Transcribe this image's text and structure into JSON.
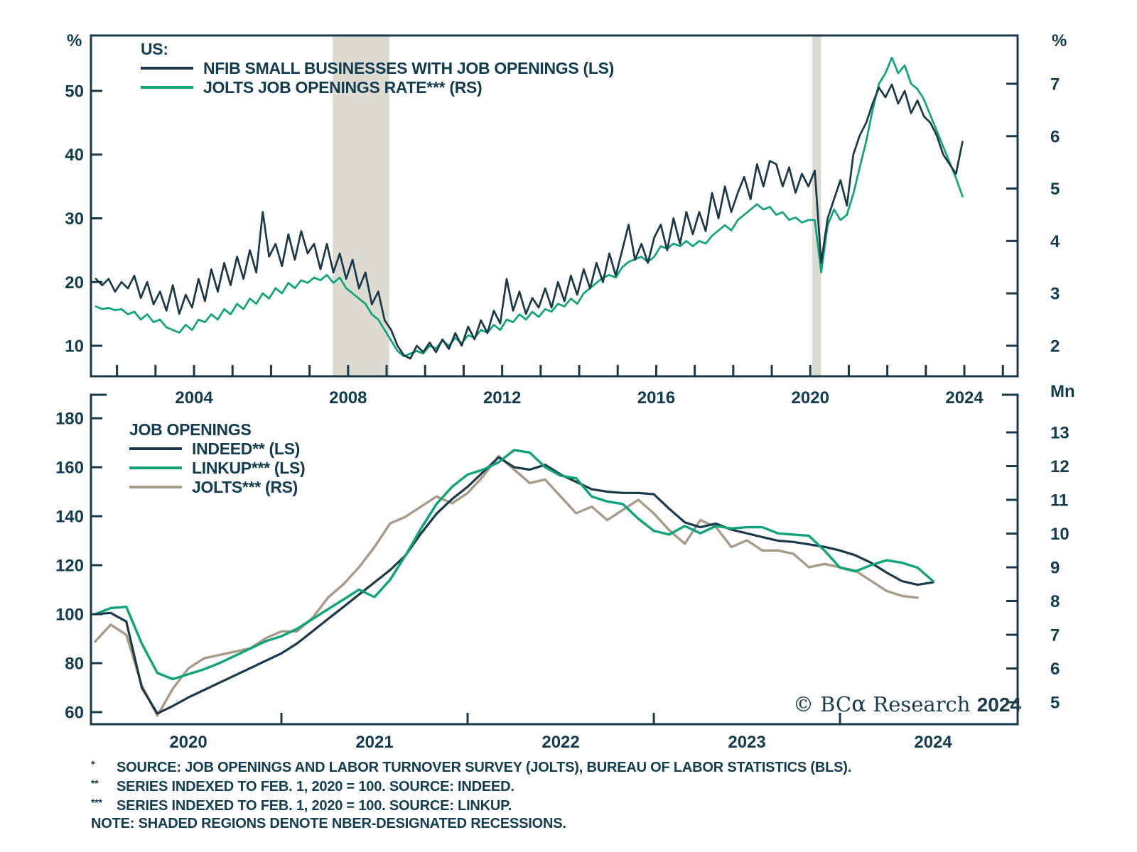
{
  "colors": {
    "navy": "#19394a",
    "green": "#0ca478",
    "tan": "#a79b88",
    "recession_band": "#dedcd2",
    "text": "#123c4f"
  },
  "copyright": {
    "prefix": "© BC",
    "alpha": "α",
    "name": " Research ",
    "year": "2024"
  },
  "footnotes": [
    {
      "marker": "*",
      "text": "SOURCE: JOB OPENINGS AND LABOR TURNOVER SURVEY (JOLTS), BUREAU OF LABOR STATISTICS (BLS)."
    },
    {
      "marker": "**",
      "text": "SERIES INDEXED TO FEB. 1, 2020 = 100. SOURCE: INDEED."
    },
    {
      "marker": "***",
      "text": "SERIES INDEXED TO FEB. 1, 2020 = 100. SOURCE: LINKUP."
    },
    {
      "marker": "",
      "text": "NOTE: SHADED REGIONS DENOTE NBER-DESIGNATED RECESSIONS."
    }
  ],
  "chart_data": [
    {
      "type": "line",
      "panel": "top",
      "legend_title": "US:",
      "x_axis": {
        "labels": [
          2004,
          2008,
          2012,
          2016,
          2020,
          2024
        ],
        "range": [
          2001.324,
          2025.383
        ],
        "grid": false
      },
      "left_axis": {
        "unit": "%",
        "ticks": [
          50,
          40,
          30,
          20,
          10
        ],
        "range": [
          5.21,
          58.69
        ]
      },
      "right_axis": {
        "unit": "%",
        "ticks": [
          7,
          6,
          5,
          4,
          3,
          2
        ],
        "range": [
          1.417,
          7.921
        ]
      },
      "recession_bands": [
        [
          2007.6,
          2009.07
        ],
        [
          2020.05,
          2020.28
        ]
      ],
      "series": [
        {
          "name": "NFIB SMALL BUSINESSES WITH JOB OPENINGS (LS)",
          "axis": "left",
          "color": "#19394a",
          "width": 2.7,
          "x_start": 2001.45,
          "x_step": 0.16667,
          "values": [
            20.5,
            19.5,
            20.5,
            18.5,
            20,
            19,
            21,
            17.5,
            20,
            16.5,
            18.5,
            15.5,
            19.5,
            15,
            18,
            16,
            20.5,
            17,
            22,
            18.5,
            23,
            19.5,
            24,
            20.5,
            25,
            21.5,
            31,
            24,
            26,
            22.5,
            27.5,
            23.5,
            28,
            24.5,
            26,
            22,
            26,
            21.5,
            24.5,
            20.5,
            23.5,
            19,
            21.5,
            16.5,
            18.5,
            14,
            12.5,
            10,
            8.5,
            8,
            10,
            9,
            10.5,
            9,
            11,
            9.5,
            12,
            10,
            13,
            11,
            14,
            12,
            15.5,
            13.5,
            20.5,
            15.5,
            18.5,
            15,
            17.5,
            16,
            19,
            16,
            20,
            17,
            21,
            18,
            22,
            19,
            23,
            20,
            24.5,
            21,
            25,
            29,
            23.5,
            26,
            23,
            27,
            29,
            25,
            30,
            26,
            31,
            27.5,
            31,
            28,
            34,
            30,
            35,
            31,
            34,
            36.5,
            33,
            38.5,
            35,
            39,
            38.5,
            35,
            38,
            34,
            37,
            35,
            37.5,
            23,
            30,
            33,
            36,
            32,
            40,
            43,
            45,
            48,
            50.5,
            49,
            51,
            48,
            50,
            46.5,
            48.5,
            46,
            45,
            43,
            40,
            38.5,
            37,
            42
          ]
        },
        {
          "name": "JOLTS JOB OPENINGS RATE*** (RS)",
          "axis": "right",
          "color": "#0ca478",
          "width": 2.7,
          "x_start": 2001.45,
          "x_step": 0.16667,
          "values": [
            2.75,
            2.7,
            2.72,
            2.68,
            2.7,
            2.6,
            2.65,
            2.5,
            2.6,
            2.45,
            2.5,
            2.35,
            2.3,
            2.25,
            2.4,
            2.3,
            2.5,
            2.45,
            2.6,
            2.5,
            2.7,
            2.6,
            2.8,
            2.7,
            2.9,
            2.8,
            3.0,
            2.9,
            3.1,
            3.0,
            3.2,
            3.1,
            3.25,
            3.2,
            3.3,
            3.25,
            3.35,
            3.2,
            3.3,
            3.1,
            3.0,
            2.9,
            2.8,
            2.6,
            2.5,
            2.3,
            2.1,
            1.9,
            1.8,
            1.85,
            1.9,
            1.85,
            2.0,
            1.95,
            2.1,
            2.0,
            2.15,
            2.05,
            2.2,
            2.15,
            2.3,
            2.25,
            2.4,
            2.3,
            2.5,
            2.45,
            2.6,
            2.5,
            2.65,
            2.55,
            2.7,
            2.65,
            2.8,
            2.75,
            2.9,
            2.8,
            3.0,
            3.1,
            3.2,
            3.3,
            3.35,
            3.3,
            3.5,
            3.6,
            3.65,
            3.7,
            3.6,
            3.7,
            3.9,
            3.85,
            3.95,
            3.9,
            4.0,
            3.9,
            4.0,
            3.95,
            4.1,
            4.2,
            4.3,
            4.2,
            4.4,
            4.5,
            4.6,
            4.7,
            4.6,
            4.65,
            4.5,
            4.55,
            4.4,
            4.45,
            4.35,
            4.4,
            4.4,
            3.4,
            4.3,
            4.6,
            4.4,
            4.5,
            4.9,
            5.4,
            5.9,
            6.5,
            7.0,
            7.2,
            7.5,
            7.2,
            7.35,
            7.0,
            6.9,
            6.7,
            6.4,
            6.1,
            5.8,
            5.5,
            5.2,
            4.85
          ]
        }
      ]
    },
    {
      "type": "line",
      "panel": "bottom",
      "legend_title": "JOB OPENINGS",
      "x_axis": {
        "labels": [
          2020,
          2021,
          2022,
          2023,
          2024
        ],
        "range": [
          2019.977,
          2024.954
        ],
        "grid": false
      },
      "left_axis": {
        "unit": "",
        "ticks": [
          180,
          160,
          140,
          120,
          100,
          80,
          60
        ],
        "range": [
          55.08,
          189.58
        ]
      },
      "right_axis": {
        "unit": "Mn",
        "ticks": [
          13,
          12,
          11,
          10,
          9,
          8,
          7,
          6,
          5
        ],
        "range": [
          4.348,
          14.116
        ]
      },
      "recession_bands": [],
      "series": [
        {
          "name": "INDEED** (LS)",
          "axis": "left",
          "color": "#19394a",
          "width": 3.2,
          "x_start": 2020.0,
          "x_step": 0.08333,
          "values": [
            100,
            100.5,
            97,
            70,
            59.5,
            62.5,
            66,
            69,
            72,
            75,
            78,
            81,
            84,
            88,
            93,
            98,
            103,
            108,
            113,
            118,
            124,
            133,
            141,
            147,
            152,
            158,
            164,
            160,
            159,
            161,
            157,
            154,
            151,
            150,
            149.5,
            149.5,
            149,
            143,
            137.5,
            135.5,
            137,
            134.5,
            133,
            131.5,
            130,
            129.5,
            128.5,
            127.5,
            126,
            124,
            121,
            117,
            113.5,
            112,
            113
          ]
        },
        {
          "name": "LINKUP*** (LS)",
          "axis": "left",
          "color": "#0ca478",
          "width": 3.4,
          "x_start": 2020.0,
          "x_step": 0.08333,
          "values": [
            100,
            102.5,
            103,
            88,
            76,
            73.5,
            75.5,
            77.5,
            80,
            83,
            86,
            89,
            91,
            94,
            98,
            102,
            106,
            110,
            107,
            114,
            124,
            135,
            145,
            152,
            157,
            159,
            162,
            167,
            166,
            160,
            156.5,
            155.5,
            148,
            146,
            145,
            139,
            134,
            132.5,
            136,
            133,
            136,
            135,
            135.5,
            135.5,
            133,
            132.5,
            132,
            126,
            119,
            117.5,
            120,
            122,
            121,
            119,
            113.5
          ]
        },
        {
          "name": "JOLTS*** (RS)",
          "axis": "right",
          "color": "#a79b88",
          "width": 3.4,
          "x_start": 2020.0,
          "x_step": 0.08333,
          "values": [
            6.8,
            7.3,
            7.0,
            5.5,
            4.6,
            5.4,
            6.0,
            6.3,
            6.4,
            6.5,
            6.6,
            6.9,
            7.1,
            7.1,
            7.5,
            8.1,
            8.5,
            9.0,
            9.6,
            10.3,
            10.5,
            10.8,
            11.1,
            10.9,
            11.2,
            11.7,
            12.3,
            11.9,
            11.5,
            11.6,
            11.1,
            10.6,
            10.8,
            10.4,
            10.7,
            11.0,
            10.6,
            10.1,
            9.7,
            10.4,
            10.2,
            9.6,
            9.8,
            9.5,
            9.5,
            9.4,
            9.0,
            9.1,
            9.0,
            8.9,
            8.6,
            8.3,
            8.15,
            8.1
          ]
        }
      ]
    }
  ]
}
